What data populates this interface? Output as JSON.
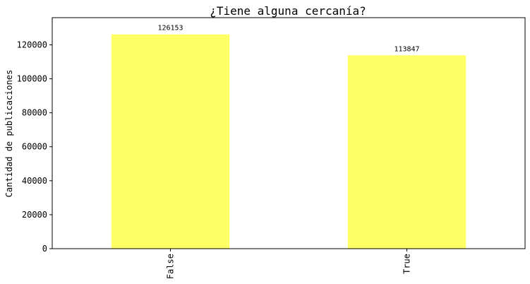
{
  "chart_data": {
    "type": "bar",
    "title": "¿Tiene alguna cercanía?",
    "xlabel": "",
    "ylabel": "Cantidad de publicaciones",
    "categories": [
      "False",
      "True"
    ],
    "values": [
      126153,
      113847
    ],
    "data_labels": [
      "126153",
      "113847"
    ],
    "y_ticks": [
      0,
      20000,
      40000,
      60000,
      80000,
      100000,
      120000
    ],
    "y_tick_labels": [
      "0",
      "20000",
      "40000",
      "60000",
      "80000",
      "100000",
      "120000"
    ],
    "ylim": [
      0,
      136000
    ],
    "bar_color": "#ffff66",
    "grid": false,
    "legend": "none"
  }
}
